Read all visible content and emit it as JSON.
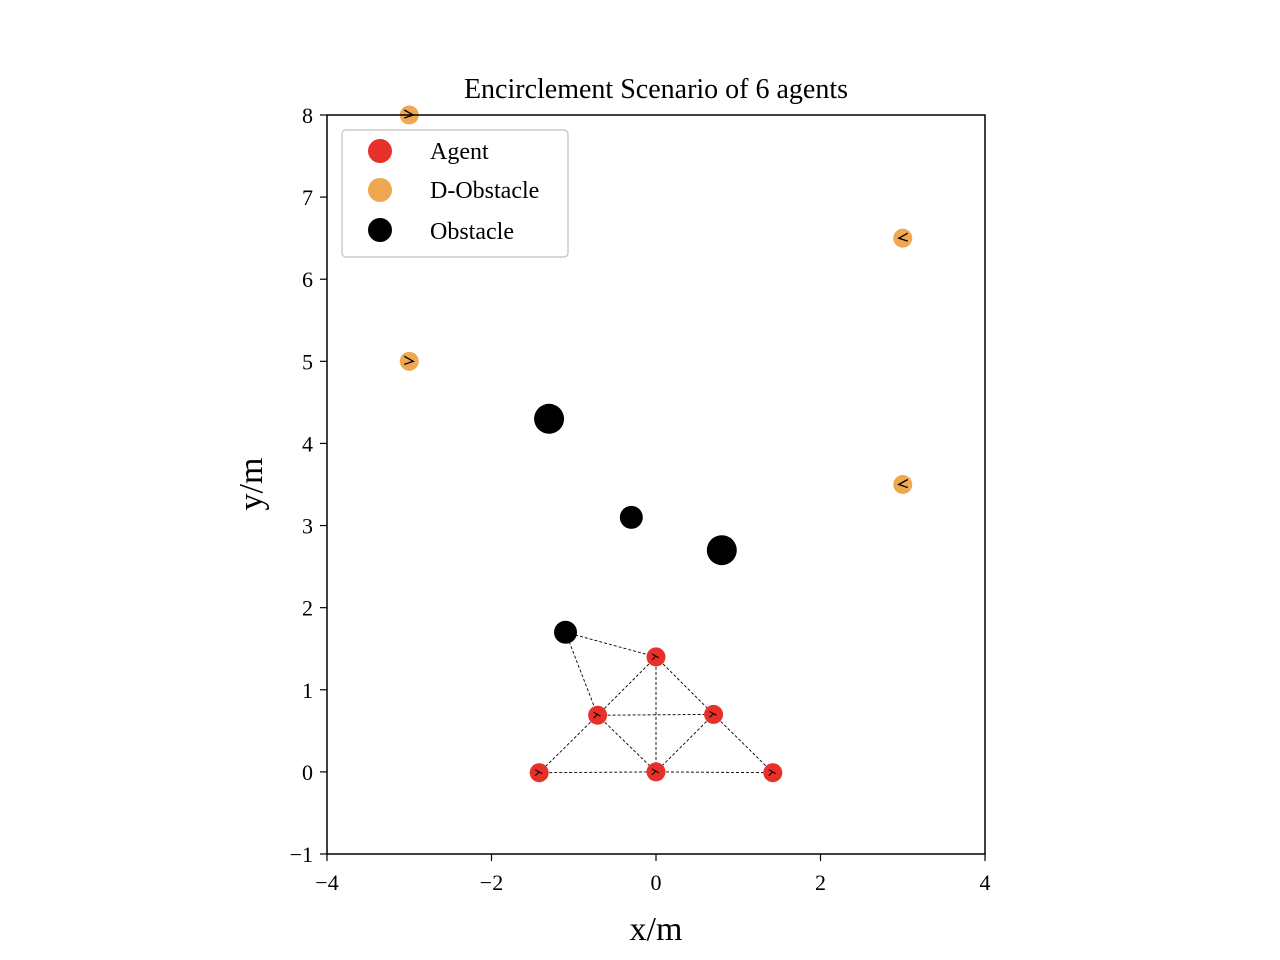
{
  "chart_data": {
    "type": "scatter",
    "title": "Encirclement Scenario of 6 agents",
    "xlabel": "x/m",
    "ylabel": "y/m",
    "xlim": [
      -4,
      4
    ],
    "ylim": [
      -1,
      8
    ],
    "xticks": [
      -4,
      -2,
      0,
      2,
      4
    ],
    "xtick_labels": [
      "−4",
      "−2",
      "0",
      "2",
      "4"
    ],
    "yticks": [
      -1,
      0,
      1,
      2,
      3,
      4,
      5,
      6,
      7,
      8
    ],
    "ytick_labels": [
      "−1",
      "0",
      "1",
      "2",
      "3",
      "4",
      "5",
      "6",
      "7",
      "8"
    ],
    "grid": false,
    "legend": {
      "position": "top-left",
      "entries": [
        {
          "label": "Agent",
          "color": "#e8302a"
        },
        {
          "label": "D-Obstacle",
          "color": "#f0a850"
        },
        {
          "label": "Obstacle",
          "color": "#000000"
        }
      ]
    },
    "agents": [
      {
        "x": 0.0,
        "y": 1.4
      },
      {
        "x": -0.71,
        "y": 0.69
      },
      {
        "x": 0.7,
        "y": 0.7
      },
      {
        "x": -1.42,
        "y": -0.01
      },
      {
        "x": 0.0,
        "y": 0.0
      },
      {
        "x": 1.42,
        "y": -0.01
      }
    ],
    "d_obstacles": [
      {
        "x": -3.0,
        "y": 8.0
      },
      {
        "x": 3.0,
        "y": 6.5
      },
      {
        "x": -3.0,
        "y": 5.0
      },
      {
        "x": 3.0,
        "y": 3.5
      }
    ],
    "obstacles": [
      {
        "x": -1.3,
        "y": 4.3,
        "size": "large"
      },
      {
        "x": -0.3,
        "y": 3.1,
        "size": "medium"
      },
      {
        "x": 0.8,
        "y": 2.7,
        "size": "large"
      },
      {
        "x": -1.1,
        "y": 1.7,
        "size": "medium"
      }
    ],
    "links": [
      [
        0,
        1
      ],
      [
        0,
        2
      ],
      [
        0,
        4
      ],
      [
        1,
        2
      ],
      [
        1,
        3
      ],
      [
        1,
        4
      ],
      [
        2,
        4
      ],
      [
        2,
        5
      ],
      [
        3,
        4
      ],
      [
        4,
        5
      ]
    ],
    "obstacle_links": [
      {
        "obstacle": 3,
        "agent": 0
      },
      {
        "obstacle": 3,
        "agent": 1
      }
    ],
    "colors": {
      "agent": "#e8302a",
      "d_obstacle": "#f0a850",
      "obstacle": "#000000"
    }
  }
}
